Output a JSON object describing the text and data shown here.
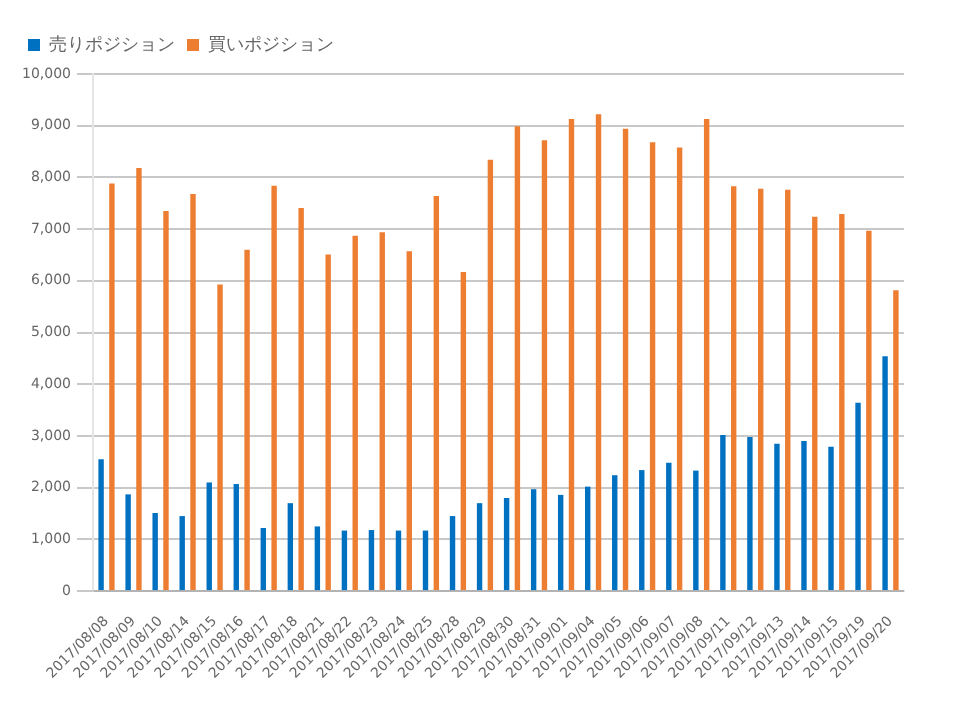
{
  "chart_data": {
    "type": "bar",
    "categories": [
      "2017/08/08",
      "2017/08/09",
      "2017/08/10",
      "2017/08/14",
      "2017/08/15",
      "2017/08/16",
      "2017/08/17",
      "2017/08/18",
      "2017/08/21",
      "2017/08/22",
      "2017/08/23",
      "2017/08/24",
      "2017/08/25",
      "2017/08/28",
      "2017/08/29",
      "2017/08/30",
      "2017/08/31",
      "2017/09/01",
      "2017/09/04",
      "2017/09/05",
      "2017/09/06",
      "2017/09/07",
      "2017/09/08",
      "2017/09/11",
      "2017/09/12",
      "2017/09/13",
      "2017/09/14",
      "2017/09/15",
      "2017/09/19",
      "2017/09/20"
    ],
    "series": [
      {
        "name": "売りポジション",
        "color": "#0070c0",
        "values": [
          2550,
          1870,
          1510,
          1450,
          2100,
          2070,
          1220,
          1700,
          1250,
          1170,
          1180,
          1170,
          1170,
          1450,
          1700,
          1800,
          1970,
          1860,
          2020,
          2240,
          2340,
          2480,
          2330,
          3020,
          2980,
          2850,
          2900,
          2790,
          3640,
          4540
        ]
      },
      {
        "name": "買いポジション",
        "color": "#ed7d31",
        "values": [
          7880,
          8180,
          7350,
          7680,
          5930,
          6600,
          7840,
          7410,
          6510,
          6870,
          6940,
          6570,
          7640,
          6170,
          8340,
          8990,
          8720,
          9130,
          9220,
          8940,
          8680,
          8580,
          9130,
          7830,
          7780,
          7760,
          7240,
          7290,
          6970,
          5820
        ]
      }
    ],
    "ylim": [
      0,
      10000
    ],
    "yticks": [
      {
        "value": 0,
        "label": "0"
      },
      {
        "value": 1000,
        "label": "1,000"
      },
      {
        "value": 2000,
        "label": "2,000"
      },
      {
        "value": 3000,
        "label": "3,000"
      },
      {
        "value": 4000,
        "label": "4,000"
      },
      {
        "value": 5000,
        "label": "5,000"
      },
      {
        "value": 6000,
        "label": "6,000"
      },
      {
        "value": 7000,
        "label": "7,000"
      },
      {
        "value": 8000,
        "label": "8,000"
      },
      {
        "value": 9000,
        "label": "9,000"
      },
      {
        "value": 10000,
        "label": "10,000"
      }
    ],
    "grid": "y",
    "legend": "top left"
  }
}
